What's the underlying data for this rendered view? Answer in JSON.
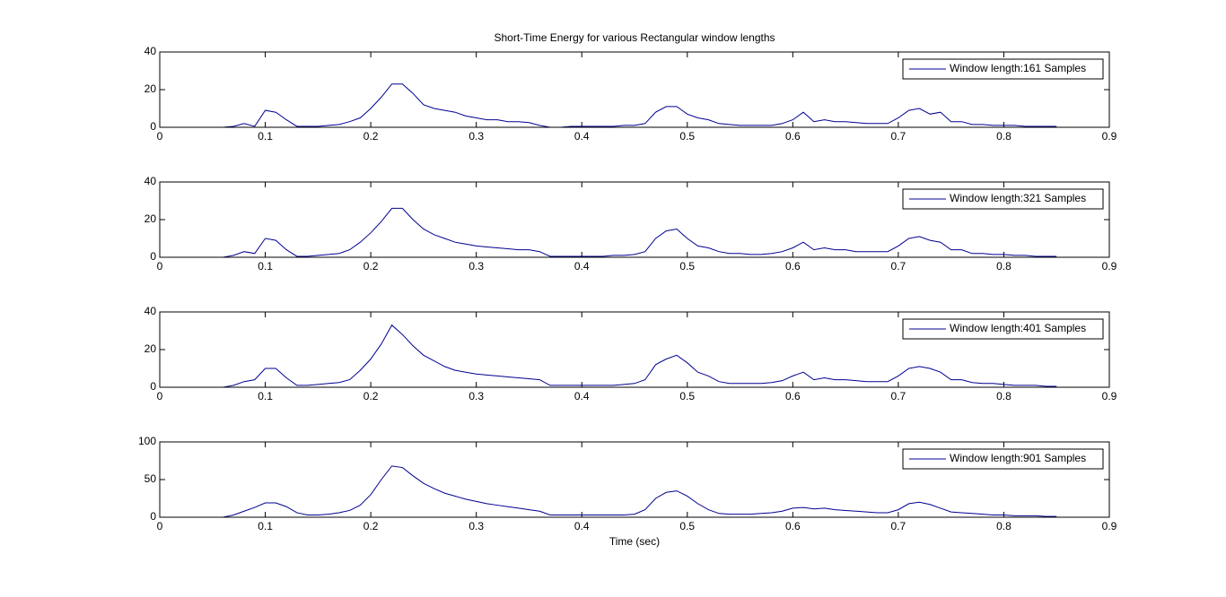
{
  "chart_data": [
    {
      "type": "line",
      "title": "Short-Time Energy for various Rectangular window lengths",
      "x": [
        0.02,
        0.03,
        0.04,
        0.05,
        0.06,
        0.07,
        0.08,
        0.09,
        0.1,
        0.11,
        0.12,
        0.13,
        0.14,
        0.15,
        0.16,
        0.17,
        0.18,
        0.19,
        0.2,
        0.21,
        0.22,
        0.23,
        0.24,
        0.25,
        0.26,
        0.27,
        0.28,
        0.29,
        0.3,
        0.31,
        0.32,
        0.33,
        0.34,
        0.35,
        0.36,
        0.37,
        0.38,
        0.39,
        0.4,
        0.41,
        0.42,
        0.43,
        0.44,
        0.45,
        0.46,
        0.47,
        0.48,
        0.49,
        0.5,
        0.51,
        0.52,
        0.53,
        0.54,
        0.55,
        0.56,
        0.57,
        0.58,
        0.59,
        0.6,
        0.61,
        0.62,
        0.63,
        0.64,
        0.65,
        0.66,
        0.67,
        0.68,
        0.69,
        0.7,
        0.71,
        0.72,
        0.73,
        0.74,
        0.75,
        0.76,
        0.77,
        0.78,
        0.79,
        0.8,
        0.81,
        0.82,
        0.83,
        0.84,
        0.85
      ],
      "series": [
        {
          "name": "Window length:161 Samples",
          "color": "#000090",
          "values": [
            0,
            0,
            0,
            0,
            0,
            0.5,
            2,
            0.5,
            9,
            8,
            4,
            0.5,
            0.5,
            0.5,
            1,
            1.5,
            3,
            5,
            10,
            16,
            23,
            23,
            18,
            12,
            10,
            9,
            8,
            6,
            5,
            4,
            4,
            3,
            3,
            2.5,
            1,
            0,
            0,
            0.5,
            0.5,
            0.5,
            0.5,
            0.5,
            1,
            1,
            2,
            8,
            11,
            11,
            7,
            5,
            4,
            2,
            1.5,
            1,
            1,
            1,
            1,
            2,
            4,
            8,
            3,
            4,
            3,
            3,
            2.5,
            2,
            2,
            2,
            5,
            9,
            10,
            7,
            8,
            3,
            3,
            1.5,
            1.5,
            1,
            1,
            1,
            0.5,
            0.5,
            0.5,
            0.5
          ]
        }
      ],
      "xlim": [
        0,
        0.9
      ],
      "xticks": [
        0,
        0.1,
        0.2,
        0.3,
        0.4,
        0.5,
        0.6,
        0.7,
        0.8,
        0.9
      ],
      "ylim": [
        0,
        40
      ],
      "yticks": [
        0,
        20,
        40
      ],
      "legend": "northeast"
    },
    {
      "type": "line",
      "x": [
        0.02,
        0.03,
        0.04,
        0.05,
        0.06,
        0.07,
        0.08,
        0.09,
        0.1,
        0.11,
        0.12,
        0.13,
        0.14,
        0.15,
        0.16,
        0.17,
        0.18,
        0.19,
        0.2,
        0.21,
        0.22,
        0.23,
        0.24,
        0.25,
        0.26,
        0.27,
        0.28,
        0.29,
        0.3,
        0.31,
        0.32,
        0.33,
        0.34,
        0.35,
        0.36,
        0.37,
        0.38,
        0.39,
        0.4,
        0.41,
        0.42,
        0.43,
        0.44,
        0.45,
        0.46,
        0.47,
        0.48,
        0.49,
        0.5,
        0.51,
        0.52,
        0.53,
        0.54,
        0.55,
        0.56,
        0.57,
        0.58,
        0.59,
        0.6,
        0.61,
        0.62,
        0.63,
        0.64,
        0.65,
        0.66,
        0.67,
        0.68,
        0.69,
        0.7,
        0.71,
        0.72,
        0.73,
        0.74,
        0.75,
        0.76,
        0.77,
        0.78,
        0.79,
        0.8,
        0.81,
        0.82,
        0.83,
        0.84,
        0.85
      ],
      "series": [
        {
          "name": "Window length:321 Samples",
          "color": "#000090",
          "values": [
            0,
            0,
            0,
            0,
            0,
            1,
            3,
            2,
            10,
            9,
            4,
            0.5,
            0.5,
            1,
            1.5,
            2,
            4,
            8,
            13,
            19,
            26,
            26,
            20,
            15,
            12,
            10,
            8,
            7,
            6,
            5.5,
            5,
            4.5,
            4,
            4,
            3,
            0.5,
            0.5,
            0.5,
            0.5,
            0.5,
            0.5,
            1,
            1,
            1.5,
            3,
            10,
            14,
            15,
            10,
            6,
            5,
            3,
            2,
            2,
            1.5,
            1.5,
            2,
            3,
            5,
            8,
            4,
            5,
            4,
            4,
            3,
            3,
            3,
            3,
            6,
            10,
            11,
            9,
            8,
            4,
            4,
            2,
            2,
            1.5,
            1.5,
            1,
            1,
            0.5,
            0.5,
            0.5
          ]
        }
      ],
      "xlim": [
        0,
        0.9
      ],
      "xticks": [
        0,
        0.1,
        0.2,
        0.3,
        0.4,
        0.5,
        0.6,
        0.7,
        0.8,
        0.9
      ],
      "ylim": [
        0,
        40
      ],
      "yticks": [
        0,
        20,
        40
      ],
      "legend": "northeast"
    },
    {
      "type": "line",
      "x": [
        0.02,
        0.03,
        0.04,
        0.05,
        0.06,
        0.07,
        0.08,
        0.09,
        0.1,
        0.11,
        0.12,
        0.13,
        0.14,
        0.15,
        0.16,
        0.17,
        0.18,
        0.19,
        0.2,
        0.21,
        0.22,
        0.23,
        0.24,
        0.25,
        0.26,
        0.27,
        0.28,
        0.29,
        0.3,
        0.31,
        0.32,
        0.33,
        0.34,
        0.35,
        0.36,
        0.37,
        0.38,
        0.39,
        0.4,
        0.41,
        0.42,
        0.43,
        0.44,
        0.45,
        0.46,
        0.47,
        0.48,
        0.49,
        0.5,
        0.51,
        0.52,
        0.53,
        0.54,
        0.55,
        0.56,
        0.57,
        0.58,
        0.59,
        0.6,
        0.61,
        0.62,
        0.63,
        0.64,
        0.65,
        0.66,
        0.67,
        0.68,
        0.69,
        0.7,
        0.71,
        0.72,
        0.73,
        0.74,
        0.75,
        0.76,
        0.77,
        0.78,
        0.79,
        0.8,
        0.81,
        0.82,
        0.83,
        0.84,
        0.85
      ],
      "series": [
        {
          "name": "Window length:401 Samples",
          "color": "#000090",
          "values": [
            0,
            0,
            0,
            0,
            0,
            1,
            3,
            4,
            10,
            10,
            5,
            1,
            1,
            1.5,
            2,
            2.5,
            4,
            9,
            15,
            23,
            33,
            28,
            22,
            17,
            14,
            11,
            9,
            8,
            7,
            6.5,
            6,
            5.5,
            5,
            4.5,
            4,
            1,
            1,
            1,
            1,
            1,
            1,
            1,
            1.5,
            2,
            4,
            12,
            15,
            17,
            13,
            8,
            6,
            3,
            2,
            2,
            2,
            2,
            2.5,
            3.5,
            6,
            8,
            4,
            5,
            4,
            4,
            3.5,
            3,
            3,
            3,
            6,
            10,
            11,
            10,
            8,
            4,
            4,
            2.5,
            2,
            2,
            1.5,
            1,
            1,
            1,
            0.5,
            0.5
          ]
        }
      ],
      "xlim": [
        0,
        0.9
      ],
      "xticks": [
        0,
        0.1,
        0.2,
        0.3,
        0.4,
        0.5,
        0.6,
        0.7,
        0.8,
        0.9
      ],
      "ylim": [
        0,
        40
      ],
      "yticks": [
        0,
        20,
        40
      ],
      "legend": "northeast"
    },
    {
      "type": "line",
      "xlabel": "Time (sec)",
      "x": [
        0.02,
        0.03,
        0.04,
        0.05,
        0.06,
        0.07,
        0.08,
        0.09,
        0.1,
        0.11,
        0.12,
        0.13,
        0.14,
        0.15,
        0.16,
        0.17,
        0.18,
        0.19,
        0.2,
        0.21,
        0.22,
        0.23,
        0.24,
        0.25,
        0.26,
        0.27,
        0.28,
        0.29,
        0.3,
        0.31,
        0.32,
        0.33,
        0.34,
        0.35,
        0.36,
        0.37,
        0.38,
        0.39,
        0.4,
        0.41,
        0.42,
        0.43,
        0.44,
        0.45,
        0.46,
        0.47,
        0.48,
        0.49,
        0.5,
        0.51,
        0.52,
        0.53,
        0.54,
        0.55,
        0.56,
        0.57,
        0.58,
        0.59,
        0.6,
        0.61,
        0.62,
        0.63,
        0.64,
        0.65,
        0.66,
        0.67,
        0.68,
        0.69,
        0.7,
        0.71,
        0.72,
        0.73,
        0.74,
        0.75,
        0.76,
        0.77,
        0.78,
        0.79,
        0.8,
        0.81,
        0.82,
        0.83,
        0.84,
        0.85
      ],
      "series": [
        {
          "name": "Window length:901 Samples",
          "color": "#000090",
          "values": [
            0,
            0,
            0,
            0,
            0,
            3,
            8,
            13,
            19,
            19,
            14,
            6,
            3,
            3,
            4,
            6,
            9,
            16,
            30,
            50,
            68,
            66,
            55,
            45,
            38,
            32,
            28,
            24,
            21,
            18,
            16,
            14,
            12,
            10,
            8,
            3,
            3,
            3,
            3,
            3,
            3,
            3,
            3,
            4,
            10,
            25,
            33,
            35,
            28,
            18,
            10,
            5,
            4,
            4,
            4,
            5,
            6,
            8,
            12,
            13,
            11,
            12,
            10,
            9,
            8,
            7,
            6,
            6,
            10,
            18,
            20,
            17,
            12,
            7,
            6,
            5,
            4,
            3,
            3,
            2,
            2,
            2,
            1,
            1
          ]
        }
      ],
      "xlim": [
        0,
        0.9
      ],
      "xticks": [
        0,
        0.1,
        0.2,
        0.3,
        0.4,
        0.5,
        0.6,
        0.7,
        0.8,
        0.9
      ],
      "ylim": [
        0,
        100
      ],
      "yticks": [
        0,
        50,
        100
      ],
      "legend": "northeast"
    }
  ]
}
